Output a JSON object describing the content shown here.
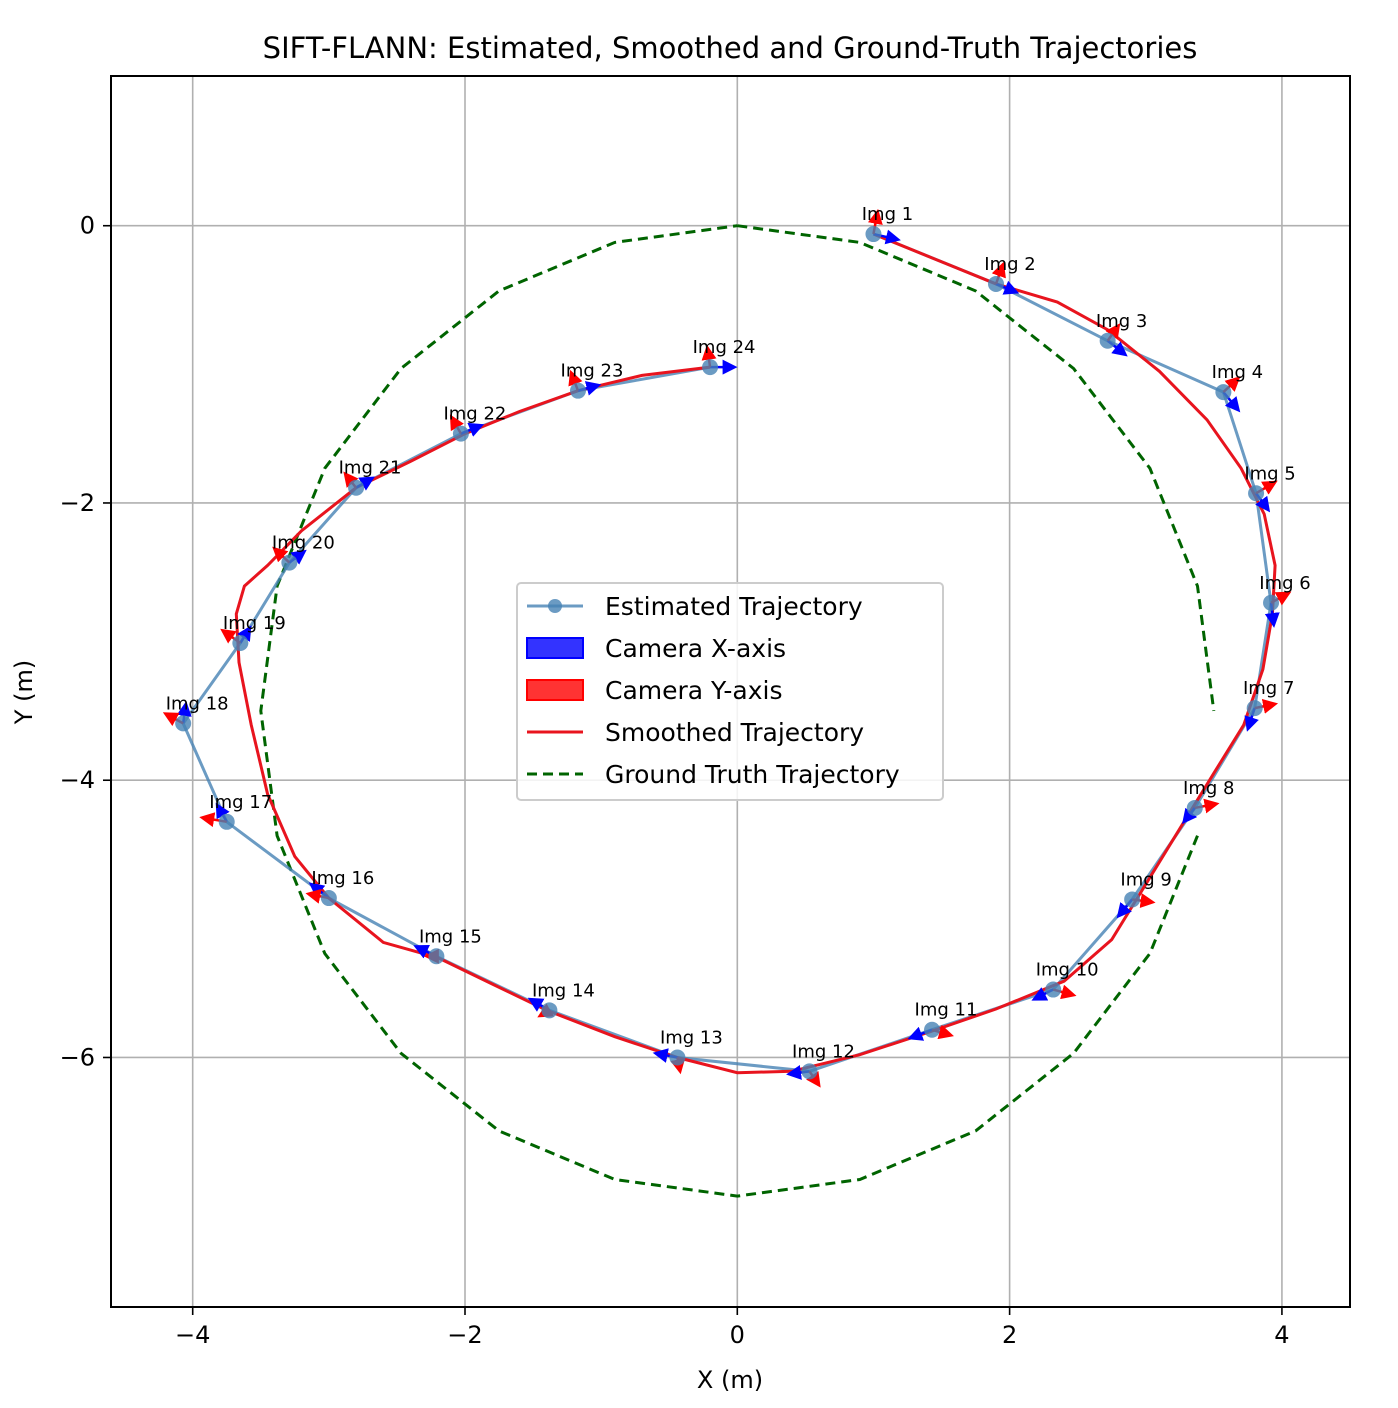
{
  "chart_data": {
    "type": "line",
    "title": "SIFT-FLANN: Estimated, Smoothed and Ground-Truth Trajectories",
    "xlabel": "X (m)",
    "ylabel": "Y (m)",
    "xlim": [
      -4.6,
      4.5
    ],
    "ylim": [
      -7.8,
      1.08
    ],
    "xticks": [
      -4,
      -2,
      0,
      2,
      4
    ],
    "yticks": [
      0,
      -2,
      -4,
      -6
    ],
    "xtick_labels": [
      "−4",
      "−2",
      "0",
      "2",
      "4"
    ],
    "ytick_labels": [
      "0",
      "−2",
      "−4",
      "−6"
    ],
    "grid": true,
    "legend_position": "center",
    "legend": [
      "Estimated Trajectory",
      "Camera X-axis",
      "Camera Y-axis",
      "Smoothed Trajectory",
      "Ground Truth Trajectory"
    ],
    "colors": {
      "estimated": "#4682b4",
      "camera_x": "#0000ff",
      "camera_y": "#ff0000",
      "smoothed": "#e8141e",
      "ground_truth": "#006400"
    },
    "estimated": {
      "labels": [
        "Img 1",
        "Img 2",
        "Img 3",
        "Img 4",
        "Img 5",
        "Img 6",
        "Img 7",
        "Img 8",
        "Img 9",
        "Img 10",
        "Img 11",
        "Img 12",
        "Img 13",
        "Img 14",
        "Img 15",
        "Img 16",
        "Img 17",
        "Img 18",
        "Img 19",
        "Img 20",
        "Img 21",
        "Img 22",
        "Img 23",
        "Img 24"
      ],
      "x": [
        1.0,
        1.9,
        2.72,
        3.57,
        3.81,
        3.92,
        3.8,
        3.36,
        2.9,
        2.32,
        1.43,
        0.53,
        -0.44,
        -1.38,
        -2.21,
        -3.0,
        -3.75,
        -4.07,
        -3.65,
        -3.29,
        -2.8,
        -2.03,
        -1.17,
        -0.2
      ],
      "y": [
        -0.06,
        -0.42,
        -0.83,
        -1.2,
        -1.93,
        -2.72,
        -3.48,
        -4.2,
        -4.86,
        -5.51,
        -5.8,
        -6.1,
        -6.0,
        -5.66,
        -5.27,
        -4.85,
        -4.3,
        -3.59,
        -3.01,
        -2.43,
        -1.89,
        -1.5,
        -1.19,
        -1.02
      ]
    },
    "smoothed": {
      "x": [
        1.0,
        1.45,
        1.9,
        2.35,
        2.72,
        3.1,
        3.45,
        3.7,
        3.87,
        3.95,
        3.93,
        3.86,
        3.72,
        3.5,
        3.25,
        3.0,
        2.75,
        2.4,
        1.9,
        1.4,
        0.9,
        0.4,
        0.0,
        -0.44,
        -0.9,
        -1.4,
        -1.8,
        -2.2,
        -2.6,
        -3.0,
        -3.25,
        -3.45,
        -3.57,
        -3.66,
        -3.68,
        -3.62,
        -3.45,
        -3.2,
        -2.8,
        -2.4,
        -2.0,
        -1.6,
        -1.17,
        -0.7,
        -0.2
      ],
      "y": [
        -0.06,
        -0.24,
        -0.42,
        -0.55,
        -0.75,
        -1.05,
        -1.4,
        -1.75,
        -2.08,
        -2.45,
        -2.8,
        -3.2,
        -3.6,
        -3.95,
        -4.35,
        -4.75,
        -5.15,
        -5.45,
        -5.65,
        -5.82,
        -5.98,
        -6.1,
        -6.11,
        -6.0,
        -5.85,
        -5.66,
        -5.47,
        -5.28,
        -5.17,
        -4.85,
        -4.55,
        -4.1,
        -3.6,
        -3.15,
        -2.8,
        -2.6,
        -2.45,
        -2.2,
        -1.89,
        -1.7,
        -1.5,
        -1.34,
        -1.19,
        -1.08,
        -1.02
      ]
    },
    "ground_truth": {
      "x": [
        0.0,
        0.9,
        1.75,
        2.47,
        3.03,
        3.38,
        3.5,
        null,
        3.38,
        3.03,
        2.47,
        1.75,
        0.9,
        0.0,
        -0.9,
        -1.75,
        -2.47,
        -3.03,
        -3.38,
        -3.5,
        -3.38,
        -3.03,
        -2.47,
        -1.75,
        -0.9,
        0.0
      ],
      "y": [
        0.0,
        -0.12,
        -0.47,
        -1.03,
        -1.75,
        -2.6,
        -3.5,
        null,
        -4.4,
        -5.25,
        -5.97,
        -6.53,
        -6.88,
        -7.0,
        -6.88,
        -6.53,
        -5.97,
        -5.25,
        -4.4,
        -3.5,
        -2.6,
        -1.75,
        -1.03,
        -0.47,
        -0.12,
        0.0
      ]
    },
    "camera_axes": [
      {
        "x": [
          1.0,
          1.18
        ],
        "y": [
          -0.06,
          -0.1
        ]
      },
      {
        "x": [
          1.9,
          2.05
        ],
        "y": [
          -0.42,
          -0.48
        ]
      },
      {
        "x": [
          2.72,
          2.85
        ],
        "y": [
          -0.83,
          -0.93
        ]
      },
      {
        "x": [
          3.57,
          3.68
        ],
        "y": [
          -1.2,
          -1.33
        ]
      },
      {
        "x": [
          3.81,
          3.9
        ],
        "y": [
          -1.93,
          -2.05
        ]
      },
      {
        "x": [
          3.92,
          3.94
        ],
        "y": [
          -2.72,
          -2.88
        ]
      },
      {
        "x": [
          3.8,
          3.75
        ],
        "y": [
          -3.48,
          -3.63
        ]
      },
      {
        "x": [
          3.36,
          3.28
        ],
        "y": [
          -4.2,
          -4.3
        ]
      },
      {
        "x": [
          2.9,
          2.8
        ],
        "y": [
          -4.86,
          -4.98
        ]
      },
      {
        "x": [
          2.32,
          2.18
        ],
        "y": [
          -5.51,
          -5.58
        ]
      },
      {
        "x": [
          1.43,
          1.27
        ],
        "y": [
          -5.8,
          -5.86
        ]
      },
      {
        "x": [
          0.53,
          0.38
        ],
        "y": [
          -6.1,
          -6.12
        ]
      },
      {
        "x": [
          -0.44,
          -0.6
        ],
        "y": [
          -6.0,
          -5.97
        ]
      },
      {
        "x": [
          -1.38,
          -1.52
        ],
        "y": [
          -5.66,
          -5.58
        ]
      },
      {
        "x": [
          -2.21,
          -2.36
        ],
        "y": [
          -5.27,
          -5.2
        ]
      },
      {
        "x": [
          -3.0,
          -3.13
        ],
        "y": [
          -4.85,
          -4.75
        ]
      },
      {
        "x": [
          -3.75,
          -3.82
        ],
        "y": [
          -4.3,
          -4.18
        ]
      },
      {
        "x": [
          -4.07,
          -4.05
        ],
        "y": [
          -3.59,
          -3.45
        ]
      },
      {
        "x": [
          -3.65,
          -3.58
        ],
        "y": [
          -3.01,
          -2.9
        ]
      },
      {
        "x": [
          -3.29,
          -3.18
        ],
        "y": [
          -2.43,
          -2.35
        ]
      },
      {
        "x": [
          -2.8,
          -2.68
        ],
        "y": [
          -1.89,
          -1.82
        ]
      },
      {
        "x": [
          -2.03,
          -1.88
        ],
        "y": [
          -1.5,
          -1.44
        ]
      },
      {
        "x": [
          -1.17,
          -1.02
        ],
        "y": [
          -1.19,
          -1.15
        ]
      },
      {
        "x": [
          -0.2,
          -0.02
        ],
        "y": [
          -1.02,
          -1.02
        ]
      }
    ],
    "camera_y_axes": [
      {
        "x": [
          1.0,
          1.03
        ],
        "y": [
          -0.06,
          0.1
        ]
      },
      {
        "x": [
          1.9,
          1.95
        ],
        "y": [
          -0.42,
          -0.28
        ]
      },
      {
        "x": [
          2.72,
          2.8
        ],
        "y": [
          -0.83,
          -0.72
        ]
      },
      {
        "x": [
          3.57,
          3.68
        ],
        "y": [
          -1.2,
          -1.1
        ]
      },
      {
        "x": [
          3.81,
          3.95
        ],
        "y": [
          -1.93,
          -1.85
        ]
      },
      {
        "x": [
          3.92,
          4.05
        ],
        "y": [
          -2.72,
          -2.65
        ]
      },
      {
        "x": [
          3.8,
          3.95
        ],
        "y": [
          -3.48,
          -3.45
        ]
      },
      {
        "x": [
          3.36,
          3.52
        ],
        "y": [
          -4.2,
          -4.17
        ]
      },
      {
        "x": [
          2.9,
          3.05
        ],
        "y": [
          -4.86,
          -4.88
        ]
      },
      {
        "x": [
          2.32,
          2.47
        ],
        "y": [
          -5.51,
          -5.55
        ]
      },
      {
        "x": [
          1.43,
          1.57
        ],
        "y": [
          -5.8,
          -5.84
        ]
      },
      {
        "x": [
          0.53,
          0.6
        ],
        "y": [
          -6.1,
          -6.2
        ]
      },
      {
        "x": [
          -0.44,
          -0.42
        ],
        "y": [
          -6.0,
          -6.1
        ]
      },
      {
        "x": [
          -1.38,
          -1.45
        ],
        "y": [
          -5.66,
          -5.7
        ]
      },
      {
        "x": [
          -2.21,
          -2.28
        ],
        "y": [
          -5.27,
          -5.27
        ]
      },
      {
        "x": [
          -3.0,
          -3.15
        ],
        "y": [
          -4.85,
          -4.82
        ]
      },
      {
        "x": [
          -3.75,
          -3.93
        ],
        "y": [
          -4.3,
          -4.27
        ]
      },
      {
        "x": [
          -4.07,
          -4.2
        ],
        "y": [
          -3.59,
          -3.52
        ]
      },
      {
        "x": [
          -3.65,
          -3.78
        ],
        "y": [
          -3.01,
          -2.92
        ]
      },
      {
        "x": [
          -3.29,
          -3.4
        ],
        "y": [
          -2.43,
          -2.33
        ]
      },
      {
        "x": [
          -2.8,
          -2.88
        ],
        "y": [
          -1.89,
          -1.79
        ]
      },
      {
        "x": [
          -2.03,
          -2.1
        ],
        "y": [
          -1.5,
          -1.38
        ]
      },
      {
        "x": [
          -1.17,
          -1.22
        ],
        "y": [
          -1.19,
          -1.06
        ]
      },
      {
        "x": [
          -0.2,
          -0.22
        ],
        "y": [
          -1.02,
          -0.88
        ]
      }
    ]
  }
}
